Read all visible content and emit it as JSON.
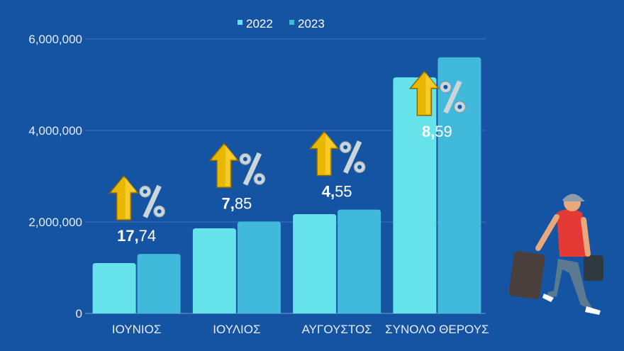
{
  "chart_data": {
    "type": "bar",
    "categories": [
      "ΙΟΥΝΙΟΣ",
      "ΙΟΥΛΙΟΣ",
      "ΑΥΓΟΥΣΤΟΣ",
      "ΣΥΝΟΛΟ ΘΕΡΟΥΣ"
    ],
    "series": [
      {
        "name": "2022",
        "color": "#66e3ea",
        "values": [
          1100000,
          1860000,
          2170000,
          5160000
        ]
      },
      {
        "name": "2023",
        "color": "#40b9da",
        "values": [
          1300000,
          2010000,
          2270000,
          5600000
        ]
      }
    ],
    "annotations": [
      "17,74",
      "7,85",
      "4,55",
      "8,59"
    ],
    "annotation_icon": "arrow-up-percent-icon",
    "yticks": [
      "0",
      "2,000,000",
      "4,000,000",
      "6,000,000"
    ],
    "ylim": [
      0,
      6000000
    ],
    "grid": true,
    "legend": "top-center",
    "xlabel": "",
    "ylabel": ""
  },
  "decoration": "traveler-with-suitcases-illustration"
}
